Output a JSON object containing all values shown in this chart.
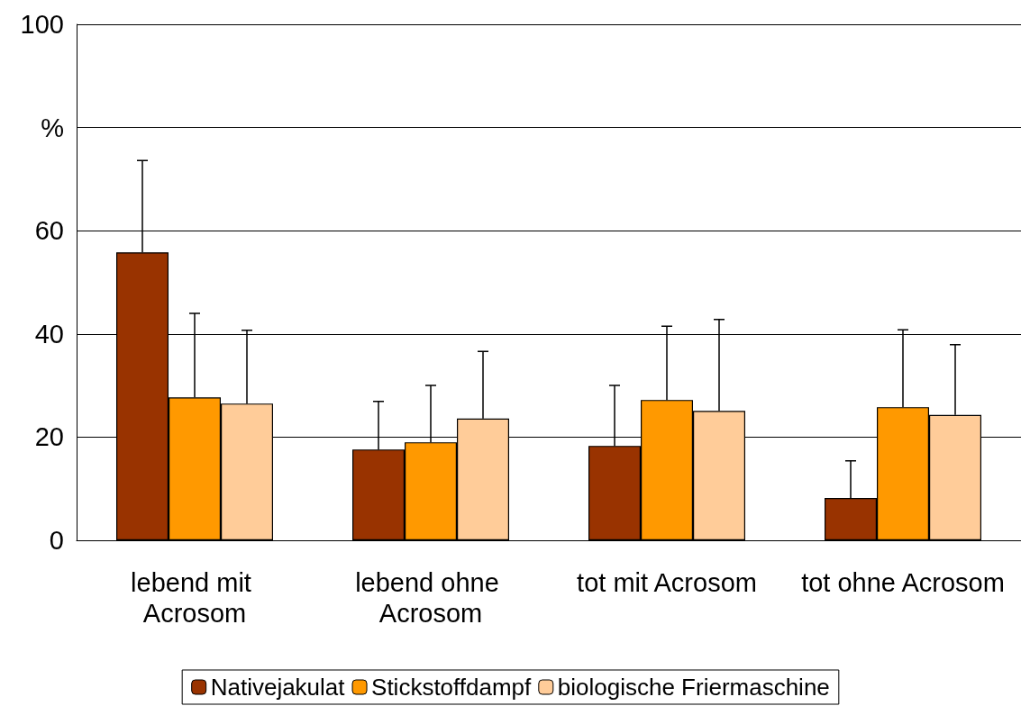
{
  "chart_data": {
    "type": "bar",
    "categories": [
      "lebend mit Acrosom",
      "lebend ohne Acrosom",
      "tot mit Acrosom",
      "tot ohne Acrosom"
    ],
    "series": [
      {
        "name": "Nativejakulat",
        "color": "#993300",
        "values": [
          55.8,
          17.6,
          18.3,
          8.2
        ],
        "errors": [
          [
            55.8,
            73.6
          ],
          [
            17.6,
            26.9
          ],
          [
            18.3,
            30.0
          ],
          [
            8.2,
            15.4
          ]
        ]
      },
      {
        "name": "Stickstoffdampf",
        "color": "#ff9900",
        "values": [
          27.7,
          19.0,
          27.2,
          25.8
        ],
        "errors": [
          [
            27.7,
            44.0
          ],
          [
            19.0,
            30.0
          ],
          [
            27.2,
            41.5
          ],
          [
            25.8,
            40.8
          ]
        ]
      },
      {
        "name": "biologische Friermaschine",
        "color": "#ffcc99",
        "values": [
          26.5,
          23.6,
          25.1,
          24.3
        ],
        "errors": [
          [
            26.5,
            40.7
          ],
          [
            23.6,
            36.6
          ],
          [
            25.1,
            42.8
          ],
          [
            24.3,
            37.9
          ]
        ]
      }
    ],
    "ylim": [
      0,
      100
    ],
    "yticks": [
      0,
      20,
      40,
      60,
      {
        "value": 80,
        "label": "%"
      },
      100
    ],
    "grid": "y",
    "legend": "bottom"
  }
}
